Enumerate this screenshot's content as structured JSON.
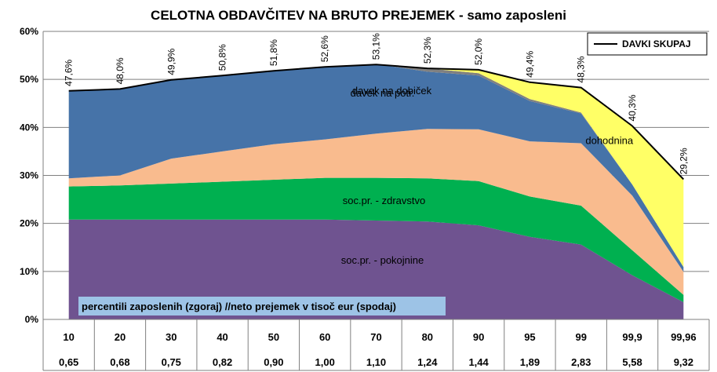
{
  "chart_data": {
    "type": "area",
    "title": "CELOTNA OBDAVČITEV NA BRUTO PREJEMEK - samo zaposleni",
    "note": "percentili zaposlenih (zgoraj) //neto prejemek v  tisoč eur (spodaj)",
    "ylim": [
      0,
      60
    ],
    "yticks": [
      "0%",
      "10%",
      "20%",
      "30%",
      "40%",
      "50%",
      "60%"
    ],
    "categories": [
      "10",
      "20",
      "30",
      "40",
      "50",
      "60",
      "70",
      "80",
      "90",
      "95",
      "99",
      "99,9",
      "99,96"
    ],
    "net_income": [
      "0,65",
      "0,68",
      "0,75",
      "0,82",
      "0,90",
      "1,00",
      "1,10",
      "1,24",
      "1,44",
      "1,89",
      "2,83",
      "5,58",
      "9,32"
    ],
    "series": [
      {
        "name": "soc.pr. - pokojnine",
        "color": "#6f5390",
        "values": [
          20.8,
          20.8,
          20.8,
          20.8,
          20.8,
          20.8,
          20.6,
          20.4,
          19.6,
          17.2,
          15.6,
          9.2,
          3.6
        ]
      },
      {
        "name": "soc.pr. - zdravstvo",
        "color": "#00b050",
        "values": [
          6.9,
          7.1,
          7.5,
          7.9,
          8.3,
          8.7,
          8.9,
          9.0,
          9.2,
          8.4,
          8.1,
          5.2,
          1.5
        ]
      },
      {
        "name": "",
        "color": "#f9bb8e",
        "values": [
          1.7,
          2.1,
          5.2,
          6.3,
          7.4,
          8.0,
          9.2,
          10.3,
          10.8,
          11.5,
          13.0,
          11.4,
          4.8
        ]
      },
      {
        "name": "davek na potr.",
        "color": "#4673a8",
        "values": [
          18.2,
          18.0,
          16.4,
          15.8,
          15.3,
          15.1,
          14.5,
          11.9,
          11.2,
          8.4,
          6.2,
          2.3,
          1.0
        ]
      },
      {
        "name": "davek na dobiček",
        "color": "#808080",
        "values": [
          0,
          0,
          0,
          0,
          0,
          0,
          0,
          0.7,
          0.5,
          0.4,
          0.2,
          0,
          0
        ]
      },
      {
        "name": "dohodnina",
        "color": "#ffff66",
        "values": [
          0,
          0,
          0,
          0,
          0,
          0,
          0,
          0,
          0.7,
          3.5,
          5.2,
          12.2,
          18.3
        ]
      }
    ],
    "total": {
      "name": "DAVKI SKUPAJ",
      "values": [
        47.6,
        48.0,
        49.9,
        50.8,
        51.8,
        52.6,
        53.1,
        52.3,
        52.0,
        49.4,
        48.3,
        40.3,
        29.2
      ],
      "labels": [
        "47,6%",
        "48,0%",
        "49,9%",
        "50,8%",
        "51,8%",
        "52,6%",
        "53,1%",
        "52,3%",
        "52,0%",
        "49,4%",
        "48,3%",
        "40,3%",
        "29,2%"
      ]
    },
    "legend": "top-right",
    "grid": "horizontal"
  }
}
